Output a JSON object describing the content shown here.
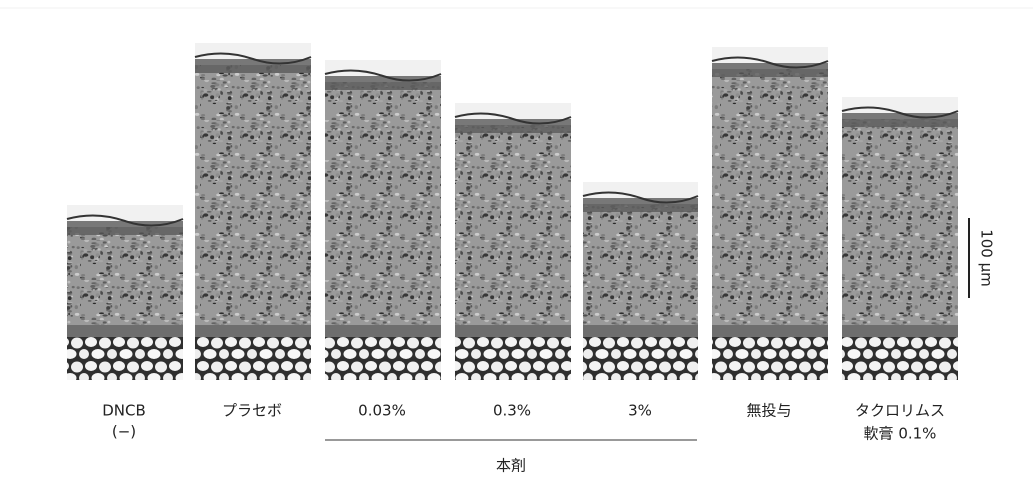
{
  "panels": [
    {
      "label": [
        "DNCB",
        "(−)"
      ]
    },
    {
      "label": [
        "プラセボ"
      ]
    },
    {
      "label": [
        "0.03%"
      ]
    },
    {
      "label": [
        "0.3%"
      ]
    },
    {
      "label": [
        "3%"
      ]
    },
    {
      "label": [
        "無投与"
      ]
    },
    {
      "label": [
        "タクロリムス",
        "軟膏 0.1%"
      ]
    }
  ],
  "group_label": "本剤",
  "scale_bar": "100 μm"
}
